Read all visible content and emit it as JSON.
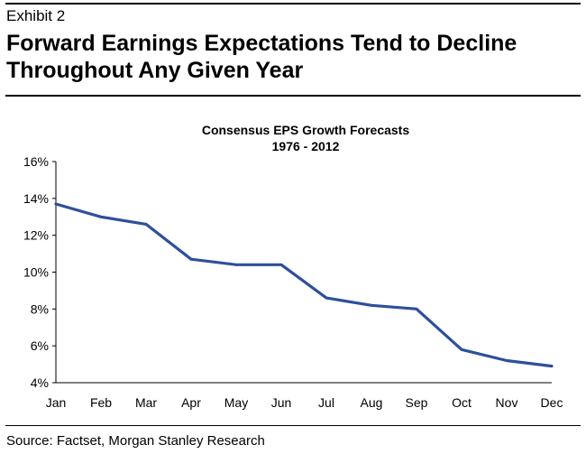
{
  "exhibit_label": "Exhibit 2",
  "headline": "Forward Earnings Expectations Tend to Decline Throughout Any Given Year",
  "source": "Source: Factset, Morgan Stanley Research",
  "colors": {
    "line": "#2e4f9b",
    "axis": "#000000"
  },
  "chart_data": {
    "type": "line",
    "title": "Consensus EPS Growth Forecasts",
    "subtitle": "1976 - 2012",
    "xlabel": "",
    "ylabel": "",
    "categories": [
      "Jan",
      "Feb",
      "Mar",
      "Apr",
      "May",
      "Jun",
      "Jul",
      "Aug",
      "Sep",
      "Oct",
      "Nov",
      "Dec"
    ],
    "series": [
      {
        "values": [
          13.7,
          13.0,
          12.6,
          10.7,
          10.4,
          10.4,
          8.6,
          8.2,
          8.0,
          5.8,
          5.2,
          4.9
        ]
      }
    ],
    "ylim": [
      4,
      16
    ],
    "yticks": [
      4,
      6,
      8,
      10,
      12,
      14,
      16
    ],
    "ytick_labels": [
      "4%",
      "6%",
      "8%",
      "10%",
      "12%",
      "14%",
      "16%"
    ],
    "grid": false,
    "legend": false
  }
}
